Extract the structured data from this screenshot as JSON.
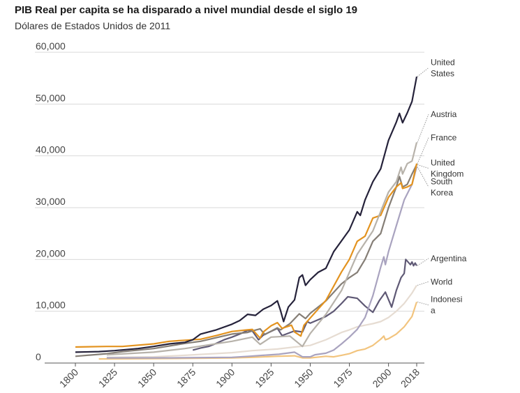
{
  "header": {
    "title": "PIB Real per capita se ha disparado a nivel mundial desde el siglo 19",
    "subtitle": "Dólares de Estados Unidos de 2011"
  },
  "chart_data": {
    "type": "line",
    "title": "PIB Real per capita se ha disparado a nivel mundial desde el siglo 19",
    "subtitle": "Dólares de Estados Unidos de 2011",
    "xlabel": "",
    "ylabel": "",
    "xlim": [
      1800,
      2018
    ],
    "ylim": [
      0,
      60000
    ],
    "x_ticks": [
      1800,
      1825,
      1850,
      1875,
      1900,
      1925,
      1950,
      1975,
      2000,
      2018
    ],
    "x_tick_labels": [
      "1800",
      "1825",
      "1850",
      "1875",
      "1900",
      "1925",
      "1950",
      "1975",
      "2000",
      "2018"
    ],
    "y_ticks": [
      0,
      10000,
      20000,
      30000,
      40000,
      50000,
      60000
    ],
    "y_tick_labels": [
      "0",
      "10,000",
      "20,000",
      "30,000",
      "40,000",
      "50,000",
      "60,000"
    ],
    "grid": "horizontal",
    "legend": "direct labels at right end of lines",
    "series": [
      {
        "name": "United States",
        "label_lines": [
          "United",
          "States"
        ],
        "color": "#25223a",
        "points": [
          [
            1800,
            2100
          ],
          [
            1815,
            2200
          ],
          [
            1825,
            2400
          ],
          [
            1840,
            2800
          ],
          [
            1850,
            3200
          ],
          [
            1860,
            3700
          ],
          [
            1870,
            4000
          ],
          [
            1875,
            4500
          ],
          [
            1880,
            5600
          ],
          [
            1890,
            6400
          ],
          [
            1900,
            7500
          ],
          [
            1905,
            8200
          ],
          [
            1910,
            9400
          ],
          [
            1915,
            9200
          ],
          [
            1920,
            10400
          ],
          [
            1925,
            11100
          ],
          [
            1929,
            12000
          ],
          [
            1931,
            10200
          ],
          [
            1933,
            8000
          ],
          [
            1936,
            10800
          ],
          [
            1940,
            12200
          ],
          [
            1943,
            16500
          ],
          [
            1945,
            17000
          ],
          [
            1947,
            15000
          ],
          [
            1950,
            16100
          ],
          [
            1955,
            17500
          ],
          [
            1960,
            18300
          ],
          [
            1965,
            21500
          ],
          [
            1970,
            23600
          ],
          [
            1975,
            25700
          ],
          [
            1980,
            29200
          ],
          [
            1982,
            28500
          ],
          [
            1985,
            31500
          ],
          [
            1990,
            35000
          ],
          [
            1995,
            37500
          ],
          [
            2000,
            43000
          ],
          [
            2005,
            46500
          ],
          [
            2007,
            48200
          ],
          [
            2009,
            46400
          ],
          [
            2012,
            48300
          ],
          [
            2015,
            50500
          ],
          [
            2018,
            55300
          ]
        ],
        "label_y": 57000
      },
      {
        "name": "Austria",
        "label_lines": [
          "Austria"
        ],
        "color": "#b7b2aa",
        "points": [
          [
            1820,
            1600
          ],
          [
            1850,
            2100
          ],
          [
            1870,
            2800
          ],
          [
            1900,
            4200
          ],
          [
            1913,
            5000
          ],
          [
            1918,
            3600
          ],
          [
            1925,
            5000
          ],
          [
            1937,
            5200
          ],
          [
            1945,
            3200
          ],
          [
            1950,
            5700
          ],
          [
            1960,
            9400
          ],
          [
            1970,
            14000
          ],
          [
            1980,
            21000
          ],
          [
            1990,
            25500
          ],
          [
            2000,
            33000
          ],
          [
            2005,
            35000
          ],
          [
            2008,
            37800
          ],
          [
            2009,
            36500
          ],
          [
            2012,
            38500
          ],
          [
            2015,
            39000
          ],
          [
            2018,
            42600
          ]
        ],
        "label_y": 48000
      },
      {
        "name": "France",
        "label_lines": [
          "France"
        ],
        "color": "#e3931f",
        "points": [
          [
            1800,
            3100
          ],
          [
            1820,
            3200
          ],
          [
            1830,
            3200
          ],
          [
            1850,
            3700
          ],
          [
            1860,
            4200
          ],
          [
            1870,
            4400
          ],
          [
            1880,
            4600
          ],
          [
            1890,
            5300
          ],
          [
            1900,
            6100
          ],
          [
            1910,
            6400
          ],
          [
            1913,
            6500
          ],
          [
            1918,
            4800
          ],
          [
            1920,
            6000
          ],
          [
            1925,
            7200
          ],
          [
            1929,
            7800
          ],
          [
            1932,
            6700
          ],
          [
            1938,
            7300
          ],
          [
            1940,
            6000
          ],
          [
            1944,
            5200
          ],
          [
            1946,
            7300
          ],
          [
            1950,
            8700
          ],
          [
            1960,
            12100
          ],
          [
            1970,
            17600
          ],
          [
            1975,
            20000
          ],
          [
            1980,
            23500
          ],
          [
            1985,
            24500
          ],
          [
            1990,
            28000
          ],
          [
            1995,
            28500
          ],
          [
            2000,
            32000
          ],
          [
            2005,
            34000
          ],
          [
            2008,
            34800
          ],
          [
            2009,
            33700
          ],
          [
            2012,
            34000
          ],
          [
            2015,
            34500
          ],
          [
            2018,
            38500
          ]
        ],
        "label_y": 43500
      },
      {
        "name": "United Kingdom",
        "label_lines": [
          "United",
          "Kingdom"
        ],
        "color": "#857e76",
        "points": [
          [
            1800,
            1300
          ],
          [
            1820,
            1800
          ],
          [
            1830,
            2200
          ],
          [
            1850,
            2800
          ],
          [
            1860,
            3300
          ],
          [
            1870,
            3800
          ],
          [
            1880,
            4200
          ],
          [
            1890,
            4900
          ],
          [
            1900,
            5600
          ],
          [
            1910,
            5900
          ],
          [
            1913,
            6200
          ],
          [
            1918,
            6600
          ],
          [
            1921,
            5500
          ],
          [
            1929,
            6800
          ],
          [
            1931,
            6400
          ],
          [
            1937,
            7600
          ],
          [
            1943,
            9500
          ],
          [
            1947,
            8600
          ],
          [
            1950,
            9600
          ],
          [
            1960,
            12000
          ],
          [
            1970,
            15300
          ],
          [
            1975,
            16500
          ],
          [
            1980,
            17500
          ],
          [
            1985,
            20000
          ],
          [
            1990,
            23500
          ],
          [
            1995,
            25000
          ],
          [
            2000,
            30000
          ],
          [
            2005,
            34000
          ],
          [
            2007,
            36000
          ],
          [
            2009,
            34000
          ],
          [
            2012,
            34500
          ],
          [
            2015,
            36500
          ],
          [
            2018,
            38300
          ]
        ],
        "label_y": 37600
      },
      {
        "name": "South Korea",
        "label_lines": [
          "South",
          "Korea"
        ],
        "color": "#a9a3bf",
        "points": [
          [
            1820,
            1000
          ],
          [
            1860,
            1000
          ],
          [
            1900,
            1100
          ],
          [
            1911,
            1300
          ],
          [
            1920,
            1500
          ],
          [
            1930,
            1700
          ],
          [
            1940,
            2100
          ],
          [
            1945,
            1200
          ],
          [
            1950,
            1200
          ],
          [
            1953,
            1600
          ],
          [
            1960,
            1900
          ],
          [
            1965,
            2500
          ],
          [
            1970,
            3700
          ],
          [
            1975,
            5000
          ],
          [
            1980,
            6500
          ],
          [
            1985,
            8800
          ],
          [
            1990,
            13000
          ],
          [
            1995,
            18500
          ],
          [
            1997,
            20500
          ],
          [
            1998,
            19000
          ],
          [
            2000,
            21500
          ],
          [
            2005,
            26500
          ],
          [
            2010,
            31500
          ],
          [
            2015,
            34500
          ],
          [
            2018,
            37900
          ]
        ],
        "label_y": 34000
      },
      {
        "name": "Argentina",
        "label_lines": [
          "Argentina"
        ],
        "color": "#5f5975",
        "points": [
          [
            1875,
            2500
          ],
          [
            1880,
            2900
          ],
          [
            1885,
            3200
          ],
          [
            1890,
            3800
          ],
          [
            1895,
            4500
          ],
          [
            1900,
            5000
          ],
          [
            1905,
            5600
          ],
          [
            1910,
            6300
          ],
          [
            1913,
            6200
          ],
          [
            1917,
            4500
          ],
          [
            1920,
            5400
          ],
          [
            1929,
            6700
          ],
          [
            1932,
            5300
          ],
          [
            1940,
            6200
          ],
          [
            1945,
            6000
          ],
          [
            1948,
            8000
          ],
          [
            1950,
            7700
          ],
          [
            1960,
            9000
          ],
          [
            1965,
            10000
          ],
          [
            1970,
            11500
          ],
          [
            1974,
            12800
          ],
          [
            1980,
            12500
          ],
          [
            1985,
            11000
          ],
          [
            1990,
            9800
          ],
          [
            1994,
            12000
          ],
          [
            1998,
            13700
          ],
          [
            2002,
            10800
          ],
          [
            2005,
            14000
          ],
          [
            2008,
            16500
          ],
          [
            2010,
            17300
          ],
          [
            2011,
            20000
          ],
          [
            2014,
            19000
          ],
          [
            2015,
            19500
          ],
          [
            2016,
            18800
          ],
          [
            2017,
            19300
          ],
          [
            2018,
            18800
          ]
        ],
        "label_y": 20200
      },
      {
        "name": "World",
        "label_lines": [
          "World"
        ],
        "color": "#e6dcd2",
        "points": [
          [
            1820,
            1100
          ],
          [
            1850,
            1200
          ],
          [
            1870,
            1500
          ],
          [
            1900,
            2000
          ],
          [
            1913,
            2400
          ],
          [
            1929,
            2700
          ],
          [
            1940,
            3100
          ],
          [
            1950,
            3400
          ],
          [
            1960,
            4500
          ],
          [
            1970,
            5900
          ],
          [
            1975,
            6400
          ],
          [
            1980,
            7000
          ],
          [
            1985,
            7300
          ],
          [
            1990,
            7600
          ],
          [
            1995,
            8000
          ],
          [
            2000,
            8800
          ],
          [
            2005,
            10000
          ],
          [
            2010,
            11500
          ],
          [
            2015,
            13500
          ],
          [
            2018,
            15000
          ]
        ],
        "label_y": 15700
      },
      {
        "name": "Indonesia",
        "label_lines": [
          "Indonesi",
          "a"
        ],
        "color": "#f2c47e",
        "points": [
          [
            1815,
            800
          ],
          [
            1850,
            850
          ],
          [
            1870,
            900
          ],
          [
            1900,
            1000
          ],
          [
            1913,
            1100
          ],
          [
            1929,
            1300
          ],
          [
            1940,
            1400
          ],
          [
            1945,
            1000
          ],
          [
            1950,
            1000
          ],
          [
            1960,
            1300
          ],
          [
            1965,
            1200
          ],
          [
            1970,
            1500
          ],
          [
            1975,
            1800
          ],
          [
            1980,
            2400
          ],
          [
            1985,
            2700
          ],
          [
            1990,
            3400
          ],
          [
            1995,
            4600
          ],
          [
            1997,
            5200
          ],
          [
            1998,
            4500
          ],
          [
            2000,
            4700
          ],
          [
            2005,
            5600
          ],
          [
            2010,
            7000
          ],
          [
            2015,
            9000
          ],
          [
            2018,
            11800
          ]
        ],
        "label_y": 11200
      }
    ]
  }
}
